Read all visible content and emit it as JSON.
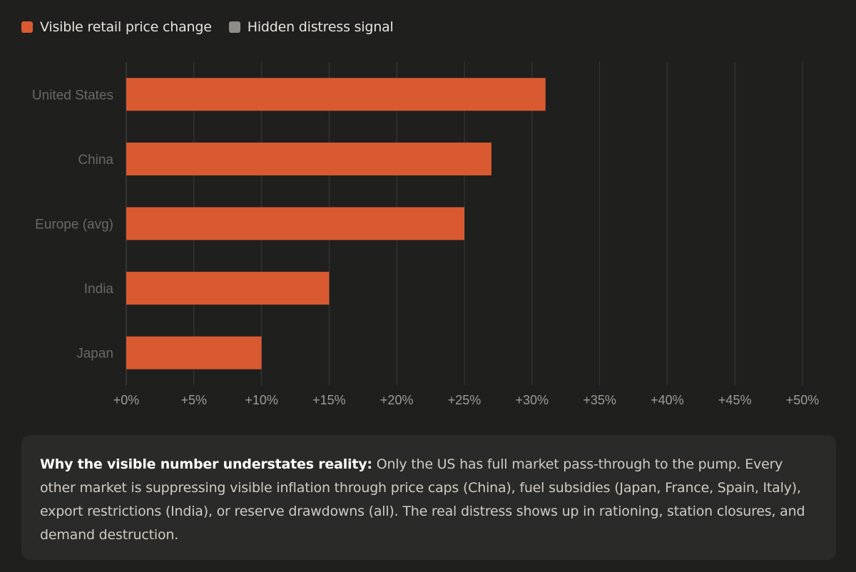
{
  "legend": {
    "items": [
      {
        "label": "Visible retail price change",
        "color": "#d95a31"
      },
      {
        "label": "Hidden distress signal",
        "color": "#8f8d88"
      }
    ]
  },
  "chart_data": {
    "type": "bar",
    "orientation": "horizontal",
    "categories": [
      "United States",
      "China",
      "Europe (avg)",
      "India",
      "Japan"
    ],
    "series": [
      {
        "name": "Visible retail price change",
        "values": [
          31,
          27,
          25,
          15,
          10
        ],
        "color": "#d95a31"
      }
    ],
    "xlim": [
      0,
      50
    ],
    "xticks": [
      0,
      5,
      10,
      15,
      20,
      25,
      30,
      35,
      40,
      45,
      50
    ],
    "xtick_labels": [
      "+0%",
      "+5%",
      "+10%",
      "+15%",
      "+20%",
      "+25%",
      "+30%",
      "+35%",
      "+40%",
      "+45%",
      "+50%"
    ],
    "grid": "vertical",
    "legend_position": "top-left"
  },
  "note": {
    "bold": "Why the visible number understates reality:",
    "text": "Only the US has full market pass-through to the pump. Every other market is suppressing visible inflation through price caps (China), fuel subsidies (Japan, France, Spain, Italy), export restrictions (India), or reserve drawdowns (all). The real distress shows up in rationing, station closures, and demand destruction."
  }
}
